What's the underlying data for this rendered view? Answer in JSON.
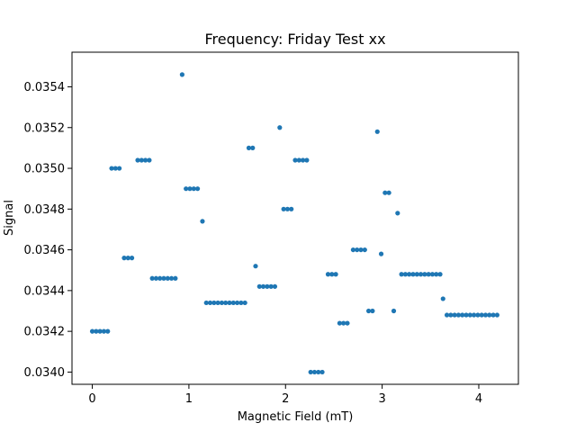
{
  "chart_data": {
    "type": "scatter",
    "title": "Frequency: Friday Test xx",
    "xlabel": "Magnetic Field (mT)",
    "ylabel": "Signal",
    "xlim": [
      -0.21,
      4.41
    ],
    "ylim": [
      0.03394,
      0.03557
    ],
    "xticks": [
      0,
      1,
      2,
      3,
      4
    ],
    "xtick_labels": [
      "0",
      "1",
      "2",
      "3",
      "4"
    ],
    "yticks": [
      0.034,
      0.0342,
      0.0344,
      0.0346,
      0.0348,
      0.035,
      0.0352,
      0.0354
    ],
    "ytick_labels": [
      "0.0340",
      "0.0342",
      "0.0344",
      "0.0346",
      "0.0348",
      "0.0350",
      "0.0352",
      "0.0354"
    ],
    "grid": false,
    "marker_color": "#1f77b4",
    "series": [
      {
        "x": [
          0.0,
          0.04,
          0.08,
          0.12,
          0.16,
          0.2,
          0.24,
          0.28,
          0.33,
          0.37,
          0.41,
          0.47,
          0.51,
          0.55,
          0.59,
          0.62,
          0.66,
          0.7,
          0.74,
          0.78,
          0.82,
          0.86,
          0.93,
          0.97,
          1.01,
          1.05,
          1.09,
          1.14,
          1.18,
          1.22,
          1.26,
          1.3,
          1.34,
          1.38,
          1.42,
          1.46,
          1.5,
          1.54,
          1.58,
          1.62,
          1.66,
          1.69,
          1.73,
          1.77,
          1.81,
          1.85,
          1.89,
          1.94,
          1.98,
          2.02,
          2.06,
          2.1,
          2.14,
          2.18,
          2.22,
          2.26,
          2.3,
          2.34,
          2.38,
          2.44,
          2.48,
          2.52,
          2.56,
          2.6,
          2.64,
          2.7,
          2.74,
          2.78,
          2.82,
          2.86,
          2.9,
          2.95,
          2.99,
          3.03,
          3.07,
          3.12,
          3.16,
          3.2,
          3.24,
          3.28,
          3.32,
          3.36,
          3.4,
          3.44,
          3.48,
          3.52,
          3.56,
          3.6,
          3.63,
          3.67,
          3.71,
          3.75,
          3.79,
          3.83,
          3.87,
          3.91,
          3.95,
          3.99,
          4.03,
          4.07,
          4.11,
          4.15,
          4.19
        ],
        "y": [
          0.0342,
          0.0342,
          0.0342,
          0.0342,
          0.0342,
          0.035,
          0.035,
          0.035,
          0.03456,
          0.03456,
          0.03456,
          0.03504,
          0.03504,
          0.03504,
          0.03504,
          0.03446,
          0.03446,
          0.03446,
          0.03446,
          0.03446,
          0.03446,
          0.03446,
          0.03546,
          0.0349,
          0.0349,
          0.0349,
          0.0349,
          0.03474,
          0.03434,
          0.03434,
          0.03434,
          0.03434,
          0.03434,
          0.03434,
          0.03434,
          0.03434,
          0.03434,
          0.03434,
          0.03434,
          0.0351,
          0.0351,
          0.03452,
          0.03442,
          0.03442,
          0.03442,
          0.03442,
          0.03442,
          0.0352,
          0.0348,
          0.0348,
          0.0348,
          0.03504,
          0.03504,
          0.03504,
          0.03504,
          0.034,
          0.034,
          0.034,
          0.034,
          0.03448,
          0.03448,
          0.03448,
          0.03424,
          0.03424,
          0.03424,
          0.0346,
          0.0346,
          0.0346,
          0.0346,
          0.0343,
          0.0343,
          0.03518,
          0.03458,
          0.03488,
          0.03488,
          0.0343,
          0.03478,
          0.03448,
          0.03448,
          0.03448,
          0.03448,
          0.03448,
          0.03448,
          0.03448,
          0.03448,
          0.03448,
          0.03448,
          0.03448,
          0.03436,
          0.03428,
          0.03428,
          0.03428,
          0.03428,
          0.03428,
          0.03428,
          0.03428,
          0.03428,
          0.03428,
          0.03428,
          0.03428,
          0.03428,
          0.03428,
          0.03428
        ]
      }
    ]
  }
}
